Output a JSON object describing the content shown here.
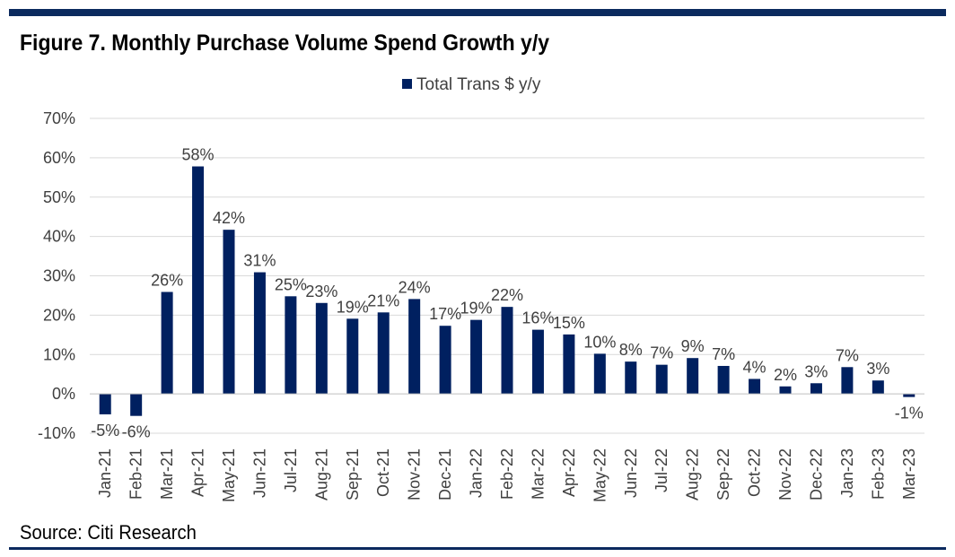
{
  "header": {
    "title": "Figure 7. Monthly Purchase Volume Spend Growth y/y"
  },
  "footer": {
    "source": "Source: Citi Research"
  },
  "colors": {
    "bar": "#002060",
    "rule": "#0b2a5e",
    "text": "#404040"
  },
  "chart_data": {
    "type": "bar",
    "title": "Figure 7. Monthly Purchase Volume Spend Growth y/y",
    "xlabel": "",
    "ylabel": "",
    "ylim": [
      -10,
      70
    ],
    "yticks": [
      -10,
      0,
      10,
      20,
      30,
      40,
      50,
      60,
      70
    ],
    "ytick_labels": [
      "-10%",
      "0%",
      "10%",
      "20%",
      "30%",
      "40%",
      "50%",
      "60%",
      "70%"
    ],
    "grid": true,
    "legend_position": "top-center",
    "categories": [
      "Jan-21",
      "Feb-21",
      "Mar-21",
      "Apr-21",
      "May-21",
      "Jun-21",
      "Jul-21",
      "Aug-21",
      "Sep-21",
      "Oct-21",
      "Nov-21",
      "Dec-21",
      "Jan-22",
      "Feb-22",
      "Mar-22",
      "Apr-22",
      "May-22",
      "Jun-22",
      "Jul-22",
      "Aug-22",
      "Sep-22",
      "Oct-22",
      "Nov-22",
      "Dec-22",
      "Jan-23",
      "Feb-23",
      "Mar-23"
    ],
    "series": [
      {
        "name": "Total Trans $ y/y",
        "values": [
          -5.2,
          -5.6,
          25.9,
          57.8,
          41.7,
          30.9,
          24.8,
          23.1,
          19.1,
          20.7,
          24.1,
          17.3,
          18.8,
          22.1,
          16.3,
          15.1,
          10.2,
          8.2,
          7.4,
          9.1,
          7.1,
          3.8,
          1.9,
          2.7,
          6.8,
          3.4,
          -0.8
        ],
        "labels": [
          "-5%",
          "-6%",
          "26%",
          "58%",
          "42%",
          "31%",
          "25%",
          "23%",
          "19%",
          "21%",
          "24%",
          "17%",
          "19%",
          "22%",
          "16%",
          "15%",
          "10%",
          "8%",
          "7%",
          "9%",
          "7%",
          "4%",
          "2%",
          "3%",
          "7%",
          "3%",
          "-1%"
        ]
      }
    ]
  }
}
